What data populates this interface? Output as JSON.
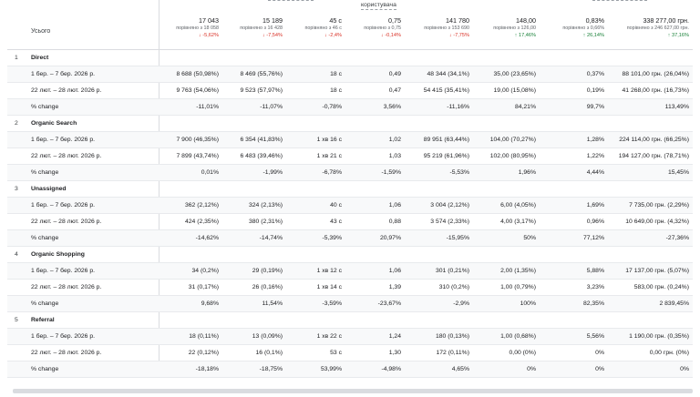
{
  "header": {
    "total_label": "Усього",
    "top_label": "користувача",
    "columns": [
      {
        "total": "17 043",
        "compare": "порівняно з 18 058",
        "change": "↓ -5,62%",
        "dir": "down"
      },
      {
        "total": "15 189",
        "compare": "порівняно з 16 428",
        "change": "↓ -7,54%",
        "dir": "down"
      },
      {
        "total": "45 с",
        "compare": "порівняно з 46 с",
        "change": "↓ -2,4%",
        "dir": "down"
      },
      {
        "total": "0,75",
        "compare": "порівняно з 0,75",
        "change": "↓ -0,14%",
        "dir": "down"
      },
      {
        "total": "141 780",
        "compare": "порівняно з 153 690",
        "change": "↓ -7,75%",
        "dir": "down"
      },
      {
        "total": "148,00",
        "compare": "порівняно з 126,00",
        "change": "↑ 17,46%",
        "dir": "up"
      },
      {
        "total": "0,83%",
        "compare": "порівняно з 0,66%",
        "change": "↑ 26,14%",
        "dir": "up"
      },
      {
        "total": "338 277,00 грн.",
        "compare": "порівняно з 246 627,00 грн.",
        "change": "↑ 37,16%",
        "dir": "up"
      }
    ]
  },
  "groups": [
    {
      "index": "1",
      "name": "Direct",
      "rows": [
        {
          "label": "1 бер. – 7 бер. 2026 р.",
          "values": [
            "8 688 (50,98%)",
            "8 469 (55,76%)",
            "18 с",
            "0,49",
            "48 344 (34,1%)",
            "35,00 (23,65%)",
            "0,37%",
            "88 101,00 грн. (26,04%)"
          ]
        },
        {
          "label": "22 лют. – 28 лют. 2026 р.",
          "values": [
            "9 763 (54,06%)",
            "9 523 (57,97%)",
            "18 с",
            "0,47",
            "54 415 (35,41%)",
            "19,00 (15,08%)",
            "0,19%",
            "41 268,00 грн. (16,73%)"
          ]
        },
        {
          "label": "% change",
          "values": [
            "-11,01%",
            "-11,07%",
            "-0,78%",
            "3,56%",
            "-11,16%",
            "84,21%",
            "99,7%",
            "113,49%"
          ]
        }
      ]
    },
    {
      "index": "2",
      "name": "Organic Search",
      "rows": [
        {
          "label": "1 бер. – 7 бер. 2026 р.",
          "values": [
            "7 900 (46,35%)",
            "6 354 (41,83%)",
            "1 хв 16 с",
            "1,02",
            "89 951 (63,44%)",
            "104,00 (70,27%)",
            "1,28%",
            "224 114,00 грн. (66,25%)"
          ]
        },
        {
          "label": "22 лют. – 28 лют. 2026 р.",
          "values": [
            "7 899 (43,74%)",
            "6 483 (39,46%)",
            "1 хв 21 с",
            "1,03",
            "95 219 (61,96%)",
            "102,00 (80,95%)",
            "1,22%",
            "194 127,00 грн. (78,71%)"
          ]
        },
        {
          "label": "% change",
          "values": [
            "0,01%",
            "-1,99%",
            "-6,78%",
            "-1,59%",
            "-5,53%",
            "1,96%",
            "4,44%",
            "15,45%"
          ]
        }
      ]
    },
    {
      "index": "3",
      "name": "Unassigned",
      "rows": [
        {
          "label": "1 бер. – 7 бер. 2026 р.",
          "values": [
            "362 (2,12%)",
            "324 (2,13%)",
            "40 с",
            "1,06",
            "3 004 (2,12%)",
            "6,00 (4,05%)",
            "1,69%",
            "7 735,00 грн. (2,29%)"
          ]
        },
        {
          "label": "22 лют. – 28 лют. 2026 р.",
          "values": [
            "424 (2,35%)",
            "380 (2,31%)",
            "43 с",
            "0,88",
            "3 574 (2,33%)",
            "4,00 (3,17%)",
            "0,96%",
            "10 649,00 грн. (4,32%)"
          ]
        },
        {
          "label": "% change",
          "values": [
            "-14,62%",
            "-14,74%",
            "-5,39%",
            "20,97%",
            "-15,95%",
            "50%",
            "77,12%",
            "-27,36%"
          ]
        }
      ]
    },
    {
      "index": "4",
      "name": "Organic Shopping",
      "rows": [
        {
          "label": "1 бер. – 7 бер. 2026 р.",
          "values": [
            "34 (0,2%)",
            "29 (0,19%)",
            "1 хв 12 с",
            "1,06",
            "301 (0,21%)",
            "2,00 (1,35%)",
            "5,88%",
            "17 137,00 грн. (5,07%)"
          ]
        },
        {
          "label": "22 лют. – 28 лют. 2026 р.",
          "values": [
            "31 (0,17%)",
            "26 (0,16%)",
            "1 хв 14 с",
            "1,39",
            "310 (0,2%)",
            "1,00 (0,79%)",
            "3,23%",
            "583,00 грн. (0,24%)"
          ]
        },
        {
          "label": "% change",
          "values": [
            "9,68%",
            "11,54%",
            "-3,59%",
            "-23,67%",
            "-2,9%",
            "100%",
            "82,35%",
            "2 839,45%"
          ]
        }
      ]
    },
    {
      "index": "5",
      "name": "Referral",
      "rows": [
        {
          "label": "1 бер. – 7 бер. 2026 р.",
          "values": [
            "18 (0,11%)",
            "13 (0,09%)",
            "1 хв 22 с",
            "1,24",
            "180 (0,13%)",
            "1,00 (0,68%)",
            "5,56%",
            "1 190,00 грн. (0,35%)"
          ]
        },
        {
          "label": "22 лют. – 28 лют. 2026 р.",
          "values": [
            "22 (0,12%)",
            "16 (0,1%)",
            "53 с",
            "1,30",
            "172 (0,11%)",
            "0,00 (0%)",
            "0%",
            "0,00 грн. (0%)"
          ]
        },
        {
          "label": "% change",
          "values": [
            "-18,18%",
            "-18,75%",
            "53,99%",
            "-4,98%",
            "4,65%",
            "0%",
            "0%",
            "0%"
          ]
        }
      ]
    }
  ]
}
